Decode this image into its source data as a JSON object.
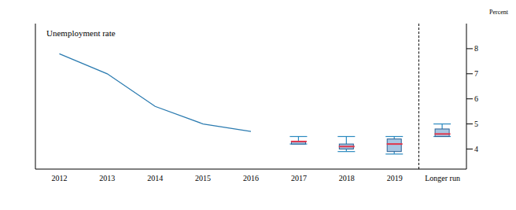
{
  "chart_data": {
    "type": "box",
    "title": "Unemployment rate",
    "y_label": "Percent",
    "categories": [
      "2012",
      "2013",
      "2014",
      "2015",
      "2016",
      "2017",
      "2018",
      "2019",
      "Longer run"
    ],
    "ylim": [
      3.2,
      9.0
    ],
    "yticks": [
      4,
      5,
      6,
      7,
      8
    ],
    "series": [
      {
        "type": "line",
        "color": "#2b7bb0",
        "values": [
          7.8,
          7.0,
          5.7,
          5.0,
          4.7,
          null,
          null,
          null,
          null
        ]
      }
    ],
    "median": {
      "color": "#e0364c",
      "values": [
        null,
        null,
        null,
        null,
        null,
        4.3,
        4.1,
        4.2,
        4.6
      ]
    },
    "central_tendency_low": [
      null,
      null,
      null,
      null,
      null,
      4.2,
      4.0,
      3.9,
      4.5
    ],
    "central_tendency_high": [
      null,
      null,
      null,
      null,
      null,
      4.3,
      4.2,
      4.4,
      4.8
    ],
    "range_low": [
      null,
      null,
      null,
      null,
      null,
      4.2,
      3.9,
      3.8,
      4.5
    ],
    "range_high": [
      null,
      null,
      null,
      null,
      null,
      4.5,
      4.5,
      4.5,
      5.0
    ],
    "box_color": "#a8c6e2",
    "whisker_color": "#2b8ac0"
  }
}
